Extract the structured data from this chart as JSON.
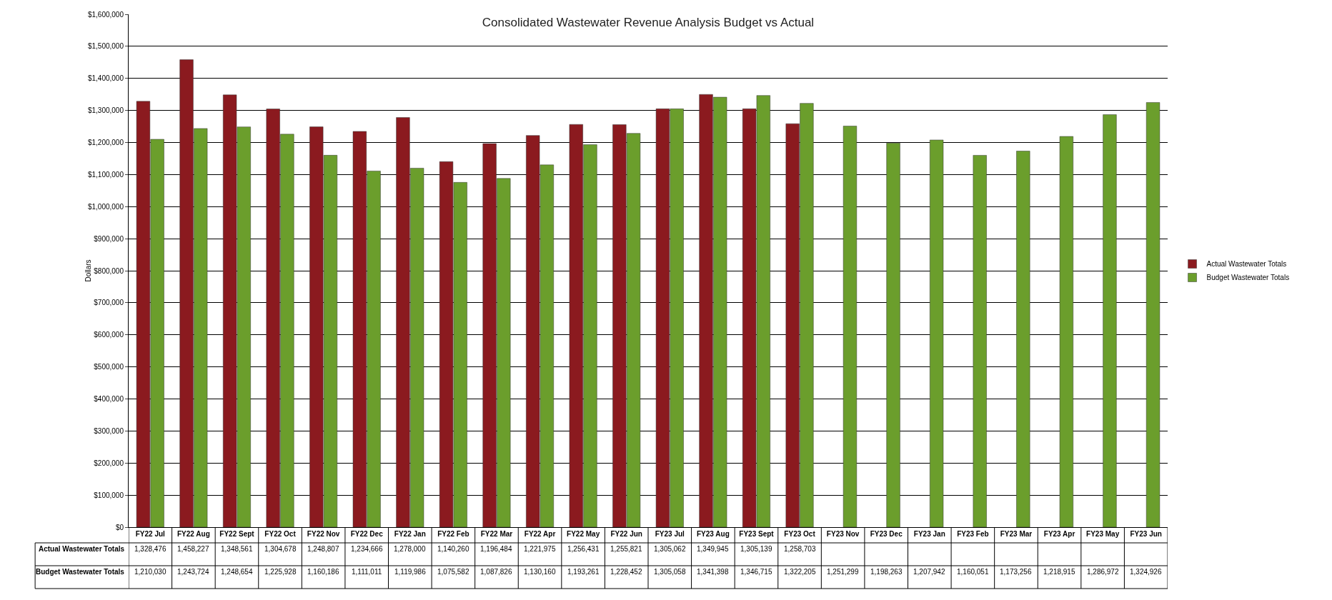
{
  "chart_data": {
    "type": "bar",
    "title": "Consolidated Wastewater Revenue Analysis Budget vs Actual",
    "ylabel": "Dollars",
    "categories": [
      "FY22 Jul",
      "FY22 Aug",
      "FY22 Sept",
      "FY22 Oct",
      "FY22 Nov",
      "FY22 Dec",
      "FY22 Jan",
      "FY22 Feb",
      "FY22 Mar",
      "FY22 Apr",
      "FY22 May",
      "FY22 Jun",
      "FY23 Jul",
      "FY23 Aug",
      "FY23 Sept",
      "FY23 Oct",
      "FY23 Nov",
      "FY23 Dec",
      "FY23 Jan",
      "FY23 Feb",
      "FY23 Mar",
      "FY23 Apr",
      "FY23 May",
      "FY23 Jun"
    ],
    "series": [
      {
        "name": "Actual Wastewater Totals",
        "color": "#8b1a1f",
        "values": [
          1328476,
          1458227,
          1348561,
          1304678,
          1248807,
          1234666,
          1278000,
          1140260,
          1196484,
          1221975,
          1256431,
          1255821,
          1305062,
          1349945,
          1305139,
          1258703,
          null,
          null,
          null,
          null,
          null,
          null,
          null,
          null
        ],
        "value_labels": [
          "1,328,476",
          "1,458,227",
          "1,348,561",
          "1,304,678",
          "1,248,807",
          "1,234,666",
          "1,278,000",
          "1,140,260",
          "1,196,484",
          "1,221,975",
          "1,256,431",
          "1,255,821",
          "1,305,062",
          "1,349,945",
          "1,305,139",
          "1,258,703",
          null,
          null,
          null,
          null,
          null,
          null,
          null,
          null
        ]
      },
      {
        "name": "Budget Wastewater Totals",
        "color": "#6b9e2c",
        "values": [
          1210030,
          1243724,
          1248654,
          1225928,
          1160186,
          1111011,
          1119986,
          1075582,
          1087826,
          1130160,
          1193261,
          1228452,
          1305058,
          1341398,
          1346715,
          1322205,
          1251299,
          1198263,
          1207942,
          1160051,
          1173256,
          1218915,
          1286972,
          1324926
        ],
        "value_labels": [
          "1,210,030",
          "1,243,724",
          "1,248,654",
          "1,225,928",
          "1,160,186",
          "1,111,011",
          "1,119,986",
          "1,075,582",
          "1,087,826",
          "1,130,160",
          "1,193,261",
          "1,228,452",
          "1,305,058",
          "1,341,398",
          "1,346,715",
          "1,322,205",
          "1,251,299",
          "1,198,263",
          "1,207,942",
          "1,160,051",
          "1,173,256",
          "1,218,915",
          "1,286,972",
          "1,324,926"
        ]
      }
    ],
    "ylim": [
      0,
      1600000
    ],
    "yticks": [
      {
        "value": 0,
        "label": "$0"
      },
      {
        "value": 100000,
        "label": "$100,000"
      },
      {
        "value": 200000,
        "label": "$200,000"
      },
      {
        "value": 300000,
        "label": "$300,000"
      },
      {
        "value": 400000,
        "label": "$400,000"
      },
      {
        "value": 500000,
        "label": "$500,000"
      },
      {
        "value": 600000,
        "label": "$600,000"
      },
      {
        "value": 700000,
        "label": "$700,000"
      },
      {
        "value": 800000,
        "label": "$800,000"
      },
      {
        "value": 900000,
        "label": "$900,000"
      },
      {
        "value": 1000000,
        "label": "$1,000,000"
      },
      {
        "value": 1100000,
        "label": "$1,100,000"
      },
      {
        "value": 1200000,
        "label": "$1,200,000"
      },
      {
        "value": 1300000,
        "label": "$1,300,000"
      },
      {
        "value": 1400000,
        "label": "$1,400,000"
      },
      {
        "value": 1500000,
        "label": "$1,500,000"
      },
      {
        "value": 1600000,
        "label": "$1,600,000"
      }
    ],
    "grid": "y",
    "legend": "right"
  }
}
